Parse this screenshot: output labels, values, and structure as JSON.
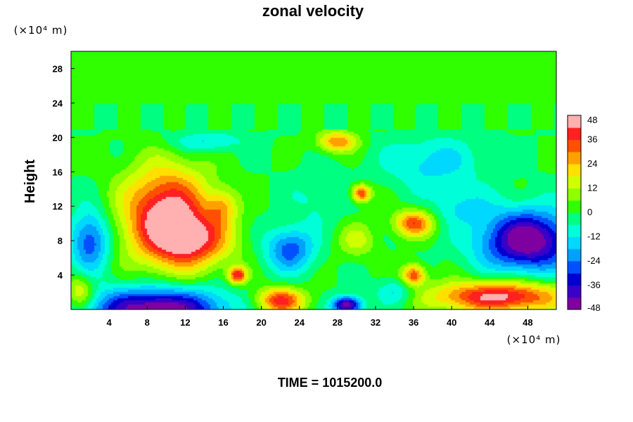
{
  "chart_data": {
    "type": "heatmap",
    "title": "zonal velocity",
    "xlabel": "",
    "ylabel": "Height",
    "x_unit": "(×10⁴ m)",
    "y_unit": "(×10⁴ m)",
    "xlim": [
      0,
      51
    ],
    "ylim": [
      0,
      30
    ],
    "x_ticks": [
      "4",
      "8",
      "12",
      "16",
      "20",
      "24",
      "28",
      "32",
      "36",
      "40",
      "44",
      "48"
    ],
    "y_ticks": [
      "4",
      "8",
      "12",
      "16",
      "20",
      "24",
      "28"
    ],
    "colorbar": {
      "range": [
        -48,
        48
      ],
      "ticks": [
        "48",
        "36",
        "24",
        "12",
        "0",
        "-12",
        "-24",
        "-36",
        "-48"
      ]
    },
    "features": [
      {
        "x": 10,
        "y": 11,
        "value": 48,
        "sx": 4.5,
        "sy": 5.5
      },
      {
        "x": 13,
        "y": 8,
        "value": 30,
        "sx": 4,
        "sy": 3
      },
      {
        "x": 2,
        "y": 8,
        "value": -30,
        "sx": 2,
        "sy": 3.5
      },
      {
        "x": 9,
        "y": 0,
        "value": -50,
        "sx": 7,
        "sy": 2.5
      },
      {
        "x": 48,
        "y": 8,
        "value": -50,
        "sx": 5,
        "sy": 3.5
      },
      {
        "x": 45,
        "y": 1.5,
        "value": 45,
        "sx": 7,
        "sy": 1.8
      },
      {
        "x": 23,
        "y": 7,
        "value": -28,
        "sx": 2.5,
        "sy": 2.5
      },
      {
        "x": 22,
        "y": 1,
        "value": 40,
        "sx": 2.5,
        "sy": 1.5
      },
      {
        "x": 17.5,
        "y": 4,
        "value": 40,
        "sx": 1,
        "sy": 1
      },
      {
        "x": 28,
        "y": 19.5,
        "value": 30,
        "sx": 2,
        "sy": 1.2
      },
      {
        "x": 30.5,
        "y": 13.5,
        "value": 38,
        "sx": 1,
        "sy": 1
      },
      {
        "x": 36,
        "y": 10,
        "value": 35,
        "sx": 2,
        "sy": 1.5
      },
      {
        "x": 36,
        "y": 4,
        "value": 36,
        "sx": 1.2,
        "sy": 1.2
      },
      {
        "x": 29,
        "y": 0.5,
        "value": -48,
        "sx": 1.5,
        "sy": 1
      },
      {
        "x": 38,
        "y": 17,
        "value": -15,
        "sx": 5,
        "sy": 3
      },
      {
        "x": 41,
        "y": 12,
        "value": -12,
        "sx": 3,
        "sy": 2
      },
      {
        "x": 14,
        "y": 19.5,
        "value": -14,
        "sx": 4,
        "sy": 1.2
      },
      {
        "x": 26,
        "y": 13,
        "value": -8,
        "sx": 3,
        "sy": 3
      },
      {
        "x": 30,
        "y": 8,
        "value": 14,
        "sx": 2,
        "sy": 2
      },
      {
        "x": 1,
        "y": 2,
        "value": 22,
        "sx": 1.5,
        "sy": 2
      },
      {
        "x": 16,
        "y": 12,
        "value": 18,
        "sx": 1.5,
        "sy": 2
      },
      {
        "x": 34,
        "y": 2,
        "value": -15,
        "sx": 2,
        "sy": 1.5
      }
    ],
    "upper_layer": {
      "from_height": 21,
      "value": 0
    }
  },
  "footer": {
    "label": "TIME = 1015200.0"
  }
}
